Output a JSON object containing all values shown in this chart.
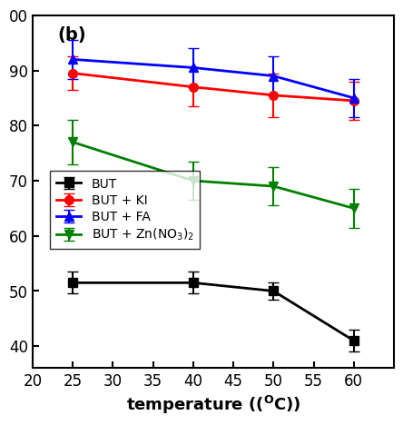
{
  "x": [
    25,
    40,
    50,
    60
  ],
  "series": [
    {
      "label": "BUT",
      "color": "black",
      "marker": "s",
      "y": [
        51.5,
        51.5,
        50.0,
        41.0
      ],
      "yerr": [
        2.0,
        2.0,
        1.5,
        2.0
      ]
    },
    {
      "label": "BUT + KI",
      "color": "red",
      "marker": "o",
      "y": [
        89.5,
        87.0,
        85.5,
        84.5
      ],
      "yerr": [
        3.0,
        3.5,
        4.0,
        3.5
      ]
    },
    {
      "label": "BUT + FA",
      "color": "blue",
      "marker": "^",
      "y": [
        92.0,
        90.5,
        89.0,
        85.0
      ],
      "yerr": [
        3.5,
        3.5,
        3.5,
        3.5
      ]
    },
    {
      "label": "BUT + Zn(NO$_3$)$_2$",
      "color": "green",
      "marker": "v",
      "y": [
        77.0,
        70.0,
        69.0,
        65.0
      ],
      "yerr": [
        4.0,
        3.5,
        3.5,
        3.5
      ]
    }
  ],
  "xlabel": "temperature ($\\mathregular{(^{O}C)}$)",
  "xlim": [
    20,
    65
  ],
  "xticks": [
    20,
    25,
    30,
    35,
    40,
    45,
    50,
    55,
    60
  ],
  "ylim": [
    36,
    100
  ],
  "yticks": [
    40,
    50,
    60,
    70,
    80,
    90,
    100
  ],
  "annotation": "(b)",
  "linewidth": 2,
  "markersize": 7,
  "capsize": 4,
  "elinewidth": 1.5
}
